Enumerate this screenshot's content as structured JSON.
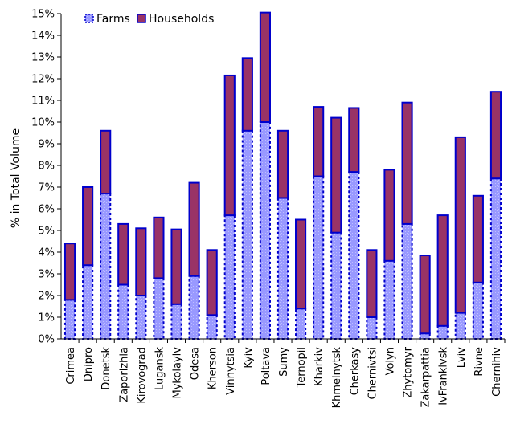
{
  "chart_data": {
    "type": "bar",
    "stacked": true,
    "ylabel": "% in Total Volume",
    "xlabel": "",
    "ylim": [
      0,
      15
    ],
    "ytick_step": 1,
    "ytick_format": "percent",
    "legend_position": "top-left",
    "categories": [
      "Crimea",
      "Dnipro",
      "Donetsk",
      "Zaporizhia",
      "Kirovograd",
      "Lugansk",
      "Mykolayiv",
      "Odesa",
      "Kherson",
      "Vinnytsia",
      "Kyiv",
      "Poltava",
      "Sumy",
      "Ternopil",
      "Kharkiv",
      "Khmelnytsk",
      "Cherkasy",
      "Chernivtsi",
      "Volyn",
      "Zhytomyr",
      "Zakarpattia",
      "IvFrankivsk",
      "Lviv",
      "Rivne",
      "Chernihiv"
    ],
    "series": [
      {
        "name": "Farms",
        "fill_color": "#9999ff",
        "edge_color": "#0000cc",
        "values": [
          1.8,
          3.4,
          6.7,
          2.5,
          2.0,
          2.8,
          1.6,
          2.9,
          1.1,
          5.7,
          9.6,
          10.0,
          6.5,
          1.4,
          7.5,
          4.9,
          7.7,
          1.0,
          3.6,
          5.3,
          0.25,
          0.6,
          1.2,
          2.6,
          7.4
        ]
      },
      {
        "name": "Households",
        "fill_color": "#993366",
        "edge_color": "#0000cc",
        "values": [
          2.6,
          3.6,
          2.9,
          2.8,
          3.1,
          2.8,
          3.45,
          4.3,
          3.0,
          6.45,
          3.35,
          5.05,
          3.1,
          4.1,
          3.2,
          5.3,
          2.95,
          3.1,
          4.2,
          5.6,
          3.6,
          5.1,
          8.1,
          4.0,
          4.0
        ]
      }
    ]
  }
}
